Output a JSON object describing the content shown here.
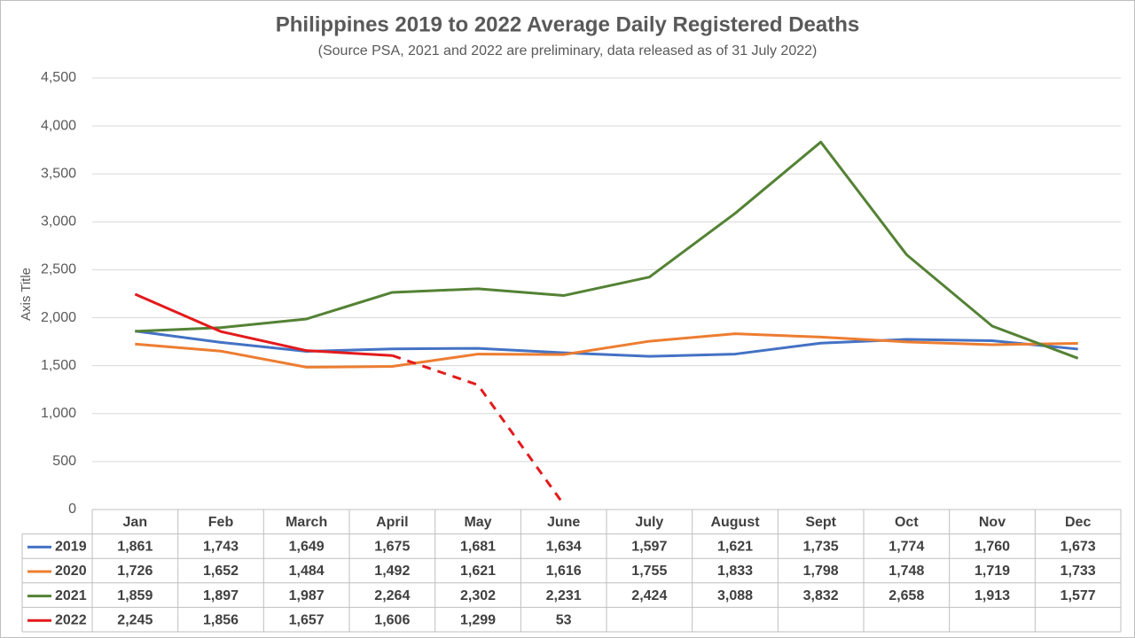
{
  "chart_data": {
    "type": "line",
    "title": "Philippines 2019 to 2022 Average Daily Registered Deaths",
    "subtitle": "(Source PSA, 2021 and 2022 are preliminary, data released as of 31 July 2022)",
    "y_label": "Axis Title",
    "categories": [
      "Jan",
      "Feb",
      "March",
      "April",
      "May",
      "June",
      "July",
      "August",
      "Sept",
      "Oct",
      "Nov",
      "Dec"
    ],
    "ylim": [
      0,
      4500
    ],
    "yticks": [
      0,
      500,
      {
        "value": 1000,
        "label": "1,000"
      },
      {
        "value": 1500,
        "label": "1,500"
      },
      {
        "value": 2000,
        "label": "2,000"
      },
      {
        "value": 2500,
        "label": "2,500"
      },
      {
        "value": 3000,
        "label": "3,000"
      },
      {
        "value": 3500,
        "label": "3,500"
      },
      {
        "value": 4000,
        "label": "4,000"
      },
      {
        "value": 4500,
        "label": "4,500"
      }
    ],
    "grid": true,
    "series": [
      {
        "name": "2019",
        "color": "#4472c4",
        "values": [
          1861,
          1743,
          1649,
          1675,
          1681,
          1634,
          1597,
          1621,
          1735,
          1774,
          1760,
          1673
        ],
        "value_labels": [
          "1,861",
          "1,743",
          "1,649",
          "1,675",
          "1,681",
          "1,634",
          "1,597",
          "1,621",
          "1,735",
          "1,774",
          "1,760",
          "1,673"
        ]
      },
      {
        "name": "2020",
        "color": "#ed7d31",
        "values": [
          1726,
          1652,
          1484,
          1492,
          1621,
          1616,
          1755,
          1833,
          1798,
          1748,
          1719,
          1733
        ],
        "value_labels": [
          "1,726",
          "1,652",
          "1,484",
          "1,492",
          "1,621",
          "1,616",
          "1,755",
          "1,833",
          "1,798",
          "1,748",
          "1,719",
          "1,733"
        ]
      },
      {
        "name": "2021",
        "color": "#548235",
        "values": [
          1859,
          1897,
          1987,
          2264,
          2302,
          2231,
          2424,
          3088,
          3832,
          2658,
          1913,
          1577
        ],
        "value_labels": [
          "1,859",
          "1,897",
          "1,987",
          "2,264",
          "2,302",
          "2,231",
          "2,424",
          "3,088",
          "3,832",
          "2,658",
          "1,913",
          "1,577"
        ]
      },
      {
        "name": "2022",
        "color": "#e31a1c",
        "dashed_from": "April",
        "values": [
          2245,
          1856,
          1657,
          1606,
          1299,
          53,
          null,
          null,
          null,
          null,
          null,
          null
        ],
        "value_labels": [
          "2,245",
          "1,856",
          "1,657",
          "1,606",
          "1,299",
          "53",
          null,
          null,
          null,
          null,
          null,
          null
        ]
      }
    ]
  }
}
